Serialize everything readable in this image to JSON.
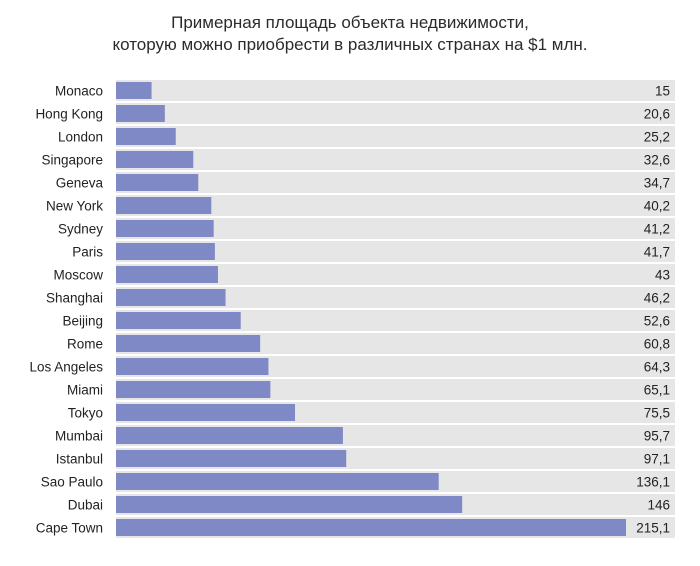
{
  "chart_data": {
    "type": "bar",
    "orientation": "horizontal",
    "title": "Примерная площадь объекта недвижимости,",
    "subtitle": "которую можно приобрести в различных странах на $1 млн.",
    "categories": [
      "Monaco",
      "Hong Kong",
      "London",
      "Singapore",
      "Geneva",
      "New York",
      "Sydney",
      "Paris",
      "Moscow",
      "Shanghai",
      "Beijing",
      "Rome",
      "Los Angeles",
      "Miami",
      "Tokyo",
      "Mumbai",
      "Istanbul",
      "Sao Paulo",
      "Dubai",
      "Cape Town"
    ],
    "values": [
      15,
      20.6,
      25.2,
      32.6,
      34.7,
      40.2,
      41.2,
      41.7,
      43,
      46.2,
      52.6,
      60.8,
      64.3,
      65.1,
      75.5,
      95.7,
      97.1,
      136.1,
      146,
      215.1
    ],
    "value_labels": [
      "15",
      "20,6",
      "25,2",
      "32,6",
      "34,7",
      "40,2",
      "41,2",
      "41,7",
      "43",
      "46,2",
      "52,6",
      "60,8",
      "64,3",
      "65,1",
      "75,5",
      "95,7",
      "97,1",
      "136,1",
      "146",
      "215,1"
    ],
    "xlim": [
      0,
      215.1
    ],
    "grid": false,
    "legend": "none",
    "colors": {
      "bar": "#7f89c5",
      "row_band": "#e6e6e6"
    }
  }
}
